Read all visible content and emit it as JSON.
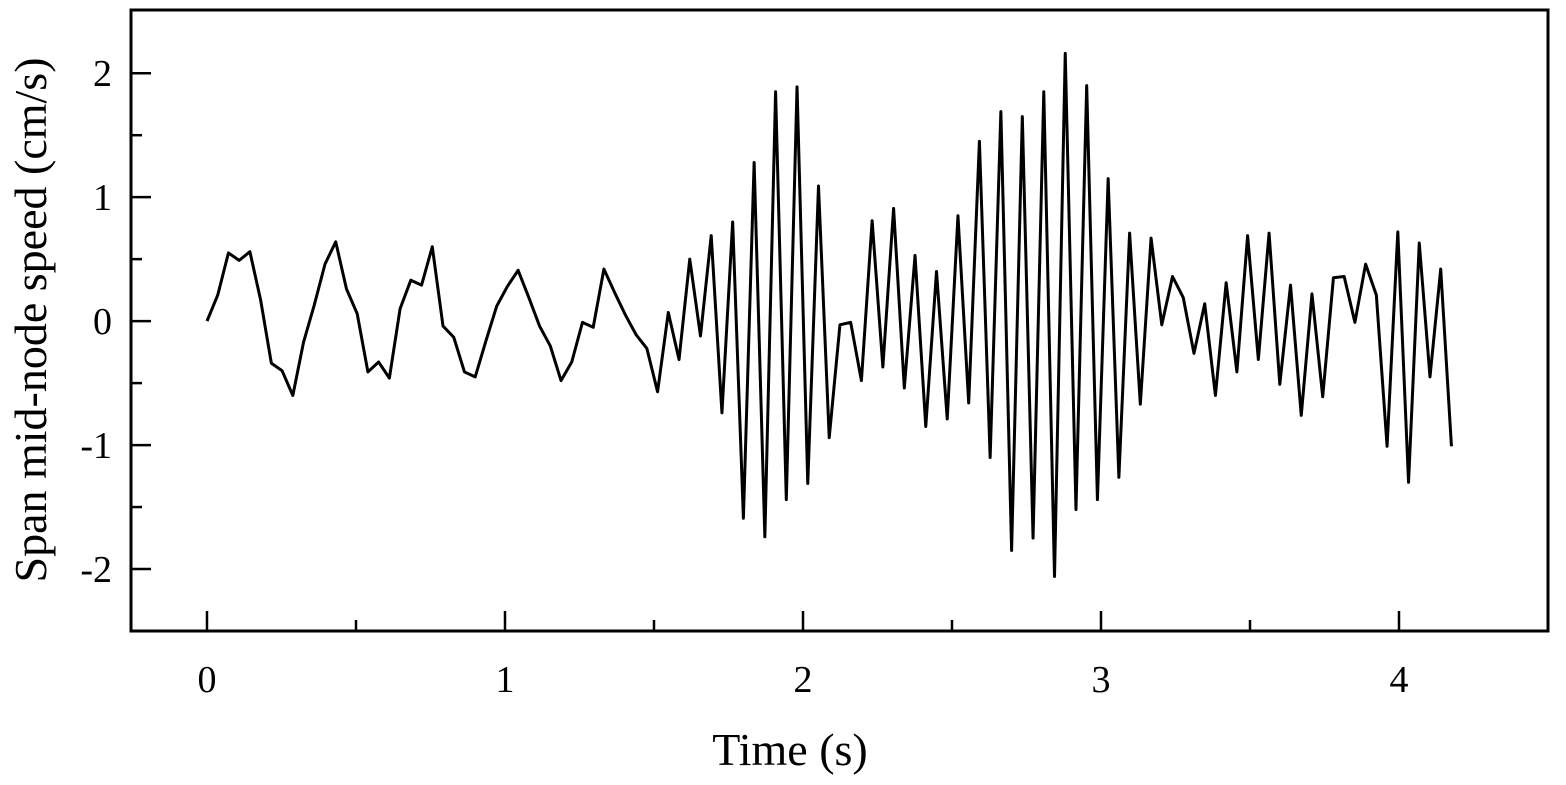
{
  "chart_data": {
    "type": "line",
    "x_label": "Time (s)",
    "y_label": "Span mid-node speed (cm/s)",
    "xlim": [
      -0.255,
      4.5
    ],
    "ylim": [
      -2.5,
      2.51
    ],
    "xticks": [
      0,
      1,
      2,
      3,
      4
    ],
    "yticks": [
      -2,
      -1,
      0,
      1,
      2
    ],
    "xminorticks": [
      0.5,
      1.5,
      2.5,
      3.5
    ],
    "yminorticks": [
      -1.5,
      -0.5,
      0.5,
      1.5
    ],
    "grid": false,
    "x": [
      0,
      0.036,
      0.072,
      0.108,
      0.144,
      0.18,
      0.216,
      0.252,
      0.288,
      0.324,
      0.36,
      0.396,
      0.432,
      0.468,
      0.504,
      0.54,
      0.576,
      0.612,
      0.648,
      0.684,
      0.72,
      0.756,
      0.792,
      0.828,
      0.864,
      0.9,
      0.936,
      0.972,
      1.008,
      1.044,
      1.08,
      1.116,
      1.152,
      1.188,
      1.224,
      1.26,
      1.296,
      1.332,
      1.368,
      1.404,
      1.44,
      1.476,
      1.512,
      1.548,
      1.584,
      1.62,
      1.656,
      1.692,
      1.728,
      1.764,
      1.8,
      1.836,
      1.872,
      1.908,
      1.944,
      1.98,
      2.016,
      2.052,
      2.088,
      2.124,
      2.16,
      2.196,
      2.232,
      2.268,
      2.304,
      2.34,
      2.376,
      2.412,
      2.448,
      2.484,
      2.52,
      2.556,
      2.592,
      2.628,
      2.664,
      2.7,
      2.736,
      2.772,
      2.808,
      2.844,
      2.88,
      2.916,
      2.952,
      2.988,
      3.024,
      3.06,
      3.096,
      3.132,
      3.168,
      3.204,
      3.24,
      3.276,
      3.312,
      3.348,
      3.384,
      3.42,
      3.456,
      3.492,
      3.528,
      3.564,
      3.6,
      3.636,
      3.672,
      3.708,
      3.744,
      3.78,
      3.816,
      3.852,
      3.888,
      3.924,
      3.96,
      3.996,
      4.032,
      4.068,
      4.104,
      4.14,
      4.176
    ],
    "series": [
      {
        "color": "#000000",
        "values": [
          0,
          0.21,
          0.55,
          0.49,
          0.56,
          0.17,
          -0.34,
          -0.4,
          -0.6,
          -0.17,
          0.13,
          0.46,
          0.64,
          0.26,
          0.06,
          -0.41,
          -0.33,
          -0.46,
          0.1,
          0.33,
          0.29,
          0.6,
          -0.04,
          -0.13,
          -0.41,
          -0.45,
          -0.16,
          0.12,
          0.28,
          0.41,
          0.19,
          -0.04,
          -0.2,
          -0.48,
          -0.33,
          -0.01,
          -0.05,
          0.42,
          0.23,
          0.05,
          -0.11,
          -0.22,
          -0.57,
          0.07,
          -0.31,
          0.5,
          -0.12,
          0.69,
          -0.74,
          0.8,
          -1.59,
          1.28,
          -1.74,
          1.85,
          -1.44,
          1.89,
          -1.31,
          1.09,
          -0.94,
          -0.03,
          -0.01,
          -0.48,
          0.81,
          -0.37,
          0.91,
          -0.54,
          0.53,
          -0.85,
          0.4,
          -0.79,
          0.85,
          -0.66,
          1.45,
          -1.1,
          1.69,
          -1.85,
          1.65,
          -1.75,
          1.85,
          -2.06,
          2.16,
          -1.52,
          1.9,
          -1.44,
          1.15,
          -1.26,
          0.71,
          -0.67,
          0.67,
          -0.03,
          0.36,
          0.19,
          -0.26,
          0.14,
          -0.6,
          0.31,
          -0.41,
          0.69,
          -0.31,
          0.71,
          -0.51,
          0.29,
          -0.76,
          0.22,
          -0.61,
          0.35,
          0.36,
          -0.01,
          0.46,
          0.21,
          -1.01,
          0.72,
          -1.3,
          0.63,
          -0.45,
          0.42,
          -1.01
        ]
      }
    ]
  }
}
